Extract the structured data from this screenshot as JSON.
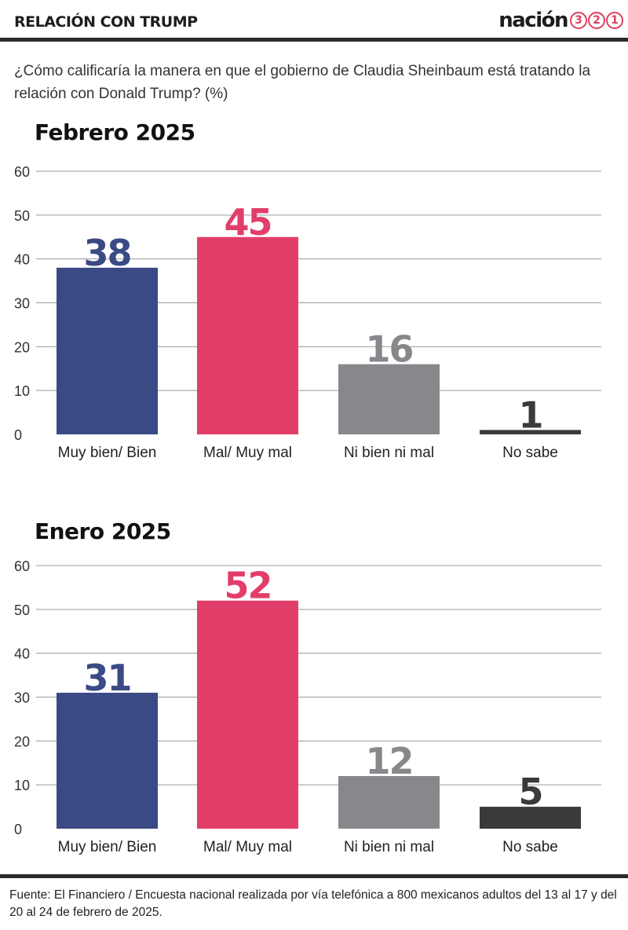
{
  "header": {
    "title": "RELACIÓN CON TRUMP",
    "logo_word": "nación",
    "logo_digits": [
      "3",
      "2",
      "1"
    ]
  },
  "question": "¿Cómo calificaría la manera en que el gobierno de Claudia Sheinbaum está tratando la relación con Donald Trump? (%)",
  "colors": {
    "muy_bien": "#3a4a85",
    "mal": "#e23e6a",
    "ni_bien": "#87888c",
    "no_sabe": "#3a3a3c",
    "brand": "#e23e5c"
  },
  "chart_data": [
    {
      "type": "bar",
      "title": "Febrero 2025",
      "categories": [
        "Muy bien/ Bien",
        "Mal/ Muy mal",
        "Ni bien ni mal",
        "No sabe"
      ],
      "values": [
        38,
        45,
        16,
        1
      ],
      "ylim": [
        0,
        60
      ],
      "yticks": [
        0,
        10,
        20,
        30,
        40,
        50,
        60
      ],
      "grid": true
    },
    {
      "type": "bar",
      "title": "Enero 2025",
      "categories": [
        "Muy bien/ Bien",
        "Mal/ Muy mal",
        "Ni bien ni mal",
        "No sabe"
      ],
      "values": [
        31,
        52,
        12,
        5
      ],
      "ylim": [
        0,
        60
      ],
      "yticks": [
        0,
        10,
        20,
        30,
        40,
        50,
        60
      ],
      "grid": true
    }
  ],
  "source": "Fuente: El Financiero / Encuesta nacional realizada por vía telefónica a 800 mexicanos adultos del 13 al 17 y del 20 al 24 de febrero de 2025."
}
